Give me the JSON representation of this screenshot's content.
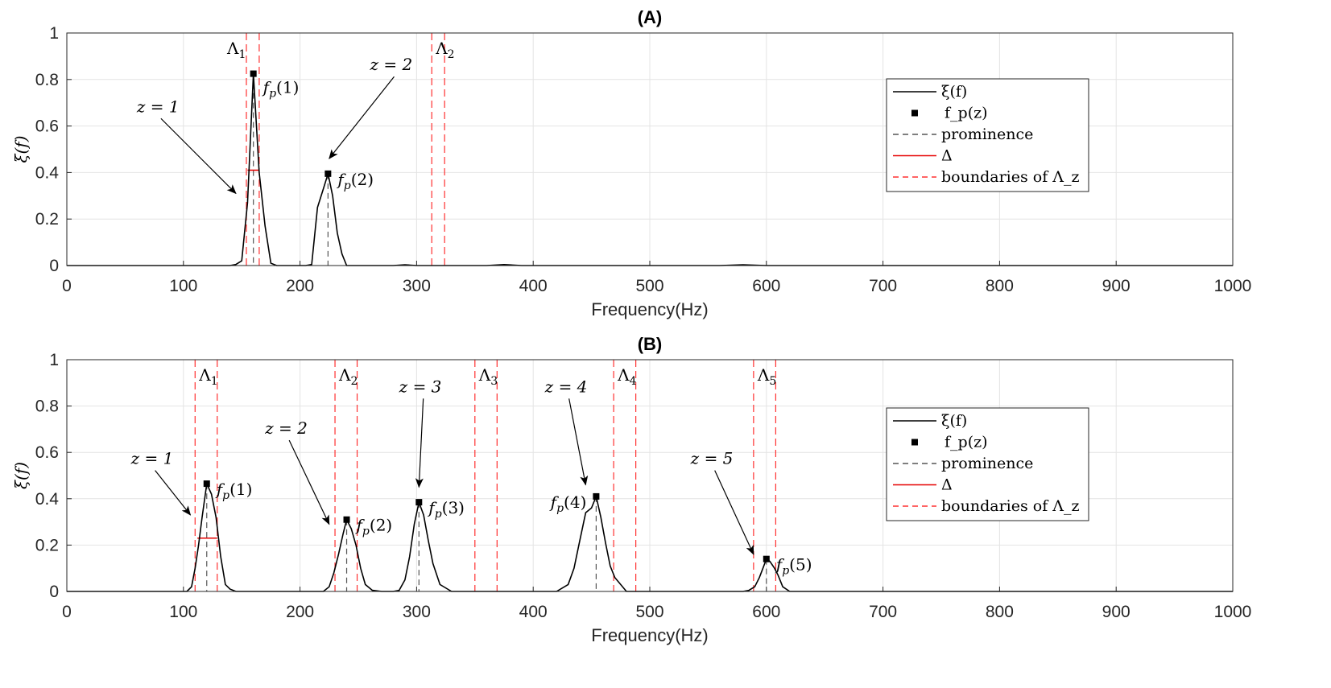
{
  "chart_data": [
    {
      "type": "line",
      "title": "(A)",
      "xlabel": "Frequency(Hz)",
      "ylabel": "ξ(f)",
      "xlim": [
        0,
        1000
      ],
      "ylim": [
        0,
        1
      ],
      "xticks": [
        "0",
        "100",
        "200",
        "300",
        "400",
        "500",
        "600",
        "700",
        "800",
        "900",
        "1000"
      ],
      "yticks": [
        "0",
        "0.2",
        "0.4",
        "0.6",
        "0.8",
        "1"
      ],
      "series": [
        {
          "name": "ξ(f)",
          "x": [
            0,
            140,
            145,
            150,
            155,
            160,
            165,
            170,
            175,
            180,
            205,
            210,
            215,
            220,
            224,
            228,
            232,
            236,
            240,
            250,
            280,
            290,
            300,
            360,
            375,
            390,
            500,
            560,
            580,
            600,
            1000
          ],
          "y": [
            0,
            0,
            0.005,
            0.02,
            0.27,
            0.825,
            0.4,
            0.17,
            0.01,
            0,
            0,
            0.005,
            0.25,
            0.33,
            0.395,
            0.3,
            0.14,
            0.05,
            0,
            0,
            0,
            0.003,
            0,
            0,
            0.004,
            0,
            0,
            0,
            0.003,
            0,
            0
          ]
        }
      ],
      "peaks": [
        {
          "label_sym": "f",
          "label_sub": "p",
          "label_arg": "(1)",
          "x": 160,
          "y": 0.825,
          "prominence": 0.825,
          "half_width": 0.41,
          "half_left": 155,
          "half_right": 165
        },
        {
          "label_sym": "f",
          "label_sub": "p",
          "label_arg": "(2)",
          "x": 224,
          "y": 0.395,
          "prominence": 0.395
        }
      ],
      "boundaries": [
        {
          "label_sym": "Λ",
          "label_sub": "1",
          "left": 154,
          "right": 165
        },
        {
          "label_sym": "Λ",
          "label_sub": "2",
          "left": 313,
          "right": 324
        }
      ],
      "annotations": [
        {
          "text": "z = 1",
          "x": 60,
          "y": 0.66,
          "target_x": 145,
          "target_y": 0.31
        },
        {
          "text": "z = 2",
          "x": 260,
          "y": 0.84,
          "target_x": 225,
          "target_y": 0.46
        }
      ],
      "legend": {
        "placement": "right",
        "entries": [
          "ξ(f)",
          "f_p(z)",
          "prominence",
          "Δ",
          "boundaries of Λ_z"
        ]
      }
    },
    {
      "type": "line",
      "title": "(B)",
      "xlabel": "Frequency(Hz)",
      "ylabel": "ξ(f)",
      "xlim": [
        0,
        1000
      ],
      "ylim": [
        0,
        1
      ],
      "xticks": [
        "0",
        "100",
        "200",
        "300",
        "400",
        "500",
        "600",
        "700",
        "800",
        "900",
        "1000"
      ],
      "yticks": [
        "0",
        "0.2",
        "0.4",
        "0.6",
        "0.8",
        "1"
      ],
      "series": [
        {
          "name": "ξ(f)",
          "x": [
            0,
            100,
            103,
            107,
            110,
            113,
            116,
            120,
            124,
            128,
            132,
            136,
            140,
            145,
            150,
            220,
            225,
            229,
            233,
            237,
            240,
            244,
            248,
            252,
            256,
            262,
            270,
            280,
            285,
            290,
            294,
            298,
            302,
            306,
            310,
            314,
            320,
            330,
            420,
            430,
            435,
            440,
            445,
            450,
            454,
            458,
            462,
            466,
            470,
            480,
            560,
            580,
            585,
            590,
            594,
            597,
            600,
            603,
            607,
            610,
            614,
            620,
            1000
          ],
          "y": [
            0,
            0,
            0,
            0.02,
            0.1,
            0.2,
            0.32,
            0.465,
            0.42,
            0.32,
            0.15,
            0.03,
            0.01,
            0,
            0,
            0,
            0.02,
            0.08,
            0.16,
            0.25,
            0.31,
            0.27,
            0.2,
            0.1,
            0.03,
            0.005,
            0,
            0,
            0.005,
            0.05,
            0.15,
            0.29,
            0.385,
            0.33,
            0.22,
            0.12,
            0.03,
            0,
            0,
            0.03,
            0.1,
            0.22,
            0.34,
            0.36,
            0.41,
            0.32,
            0.21,
            0.11,
            0.06,
            0,
            0,
            0,
            0.005,
            0.02,
            0.06,
            0.1,
            0.14,
            0.13,
            0.1,
            0.07,
            0.02,
            0,
            0
          ]
        }
      ],
      "peaks": [
        {
          "label_sym": "f",
          "label_sub": "p",
          "label_arg": "(1)",
          "x": 120,
          "y": 0.465,
          "prominence": 0.465,
          "half_width": 0.23,
          "half_left": 112,
          "half_right": 129
        },
        {
          "label_sym": "f",
          "label_sub": "p",
          "label_arg": "(2)",
          "x": 240,
          "y": 0.31,
          "prominence": 0.31
        },
        {
          "label_sym": "f",
          "label_sub": "p",
          "label_arg": "(3)",
          "x": 302,
          "y": 0.385,
          "prominence": 0.385
        },
        {
          "label_sym": "f",
          "label_sub": "p",
          "label_arg": "(4)",
          "x": 454,
          "y": 0.41,
          "prominence": 0.41
        },
        {
          "label_sym": "f",
          "label_sub": "p",
          "label_arg": "(5)",
          "x": 600,
          "y": 0.14,
          "prominence": 0.14
        }
      ],
      "boundaries": [
        {
          "label_sym": "Λ",
          "label_sub": "1",
          "left": 110,
          "right": 129
        },
        {
          "label_sym": "Λ",
          "label_sub": "2",
          "left": 230,
          "right": 249
        },
        {
          "label_sym": "Λ",
          "label_sub": "3",
          "left": 350,
          "right": 369
        },
        {
          "label_sym": "Λ",
          "label_sub": "4",
          "left": 469,
          "right": 488
        },
        {
          "label_sym": "Λ",
          "label_sub": "5",
          "left": 589,
          "right": 608
        }
      ],
      "annotations": [
        {
          "text": "z = 1",
          "x": 55,
          "y": 0.55,
          "target_x": 106,
          "target_y": 0.33
        },
        {
          "text": "z = 2",
          "x": 170,
          "y": 0.68,
          "target_x": 225,
          "target_y": 0.29
        },
        {
          "text": "z = 3",
          "x": 285,
          "y": 0.86,
          "target_x": 302,
          "target_y": 0.45
        },
        {
          "text": "z = 4",
          "x": 410,
          "y": 0.86,
          "target_x": 445,
          "target_y": 0.46
        },
        {
          "text": "z = 5",
          "x": 535,
          "y": 0.55,
          "target_x": 589,
          "target_y": 0.16
        }
      ],
      "legend": {
        "placement": "right",
        "entries": [
          "ξ(f)",
          "f_p(z)",
          "prominence",
          "Δ",
          "boundaries of Λ_z"
        ]
      }
    }
  ],
  "colors": {
    "curve": "#000000",
    "boundary": "#ff3030",
    "delta": "#e60000",
    "prominence": "#555555",
    "marker": "#000000"
  }
}
